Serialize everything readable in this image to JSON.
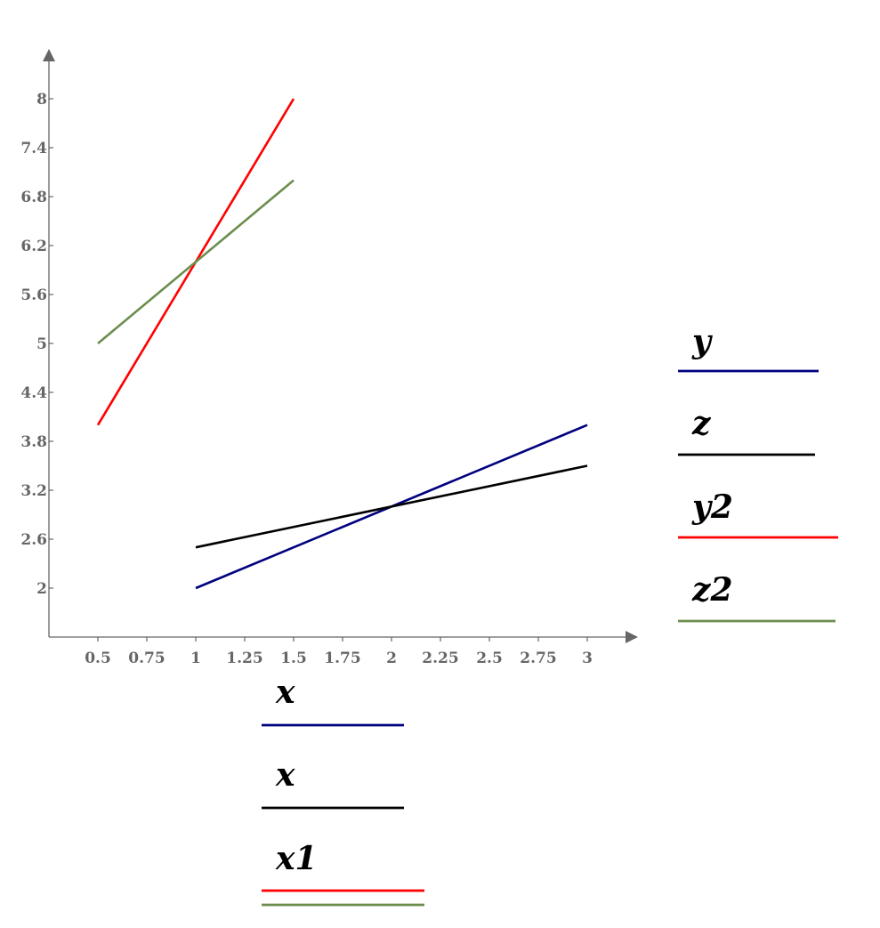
{
  "chart_data": {
    "type": "line",
    "xlim": [
      0.25,
      3.2
    ],
    "ylim": [
      1.4,
      8.5
    ],
    "x_ticks": [
      "0.5",
      "0.75",
      "1",
      "1.25",
      "1.5",
      "1.75",
      "2",
      "2.25",
      "2.5",
      "2.75",
      "3"
    ],
    "y_ticks": [
      "2",
      "2.6",
      "3.2",
      "3.8",
      "4.4",
      "5",
      "5.6",
      "6.2",
      "6.8",
      "7.4",
      "8"
    ],
    "grid": false,
    "series": [
      {
        "name": "y",
        "x_name": "x",
        "color": "#000080",
        "x": [
          1,
          3
        ],
        "y": [
          2,
          4
        ]
      },
      {
        "name": "z",
        "x_name": "x",
        "color": "#000000",
        "x": [
          1,
          3
        ],
        "y": [
          2.5,
          3.5
        ]
      },
      {
        "name": "y2",
        "x_name": "x1",
        "color": "#ff0000",
        "x": [
          0.5,
          1.5
        ],
        "y": [
          4,
          8
        ]
      },
      {
        "name": "z2",
        "x_name": "",
        "color": "#6b8e4e",
        "x": [
          0.5,
          1.5
        ],
        "y": [
          5,
          7
        ]
      }
    ],
    "y_legend": [
      "y",
      "z",
      "y2",
      "z2"
    ],
    "x_legend": [
      "x",
      "x",
      "x1",
      ""
    ]
  }
}
